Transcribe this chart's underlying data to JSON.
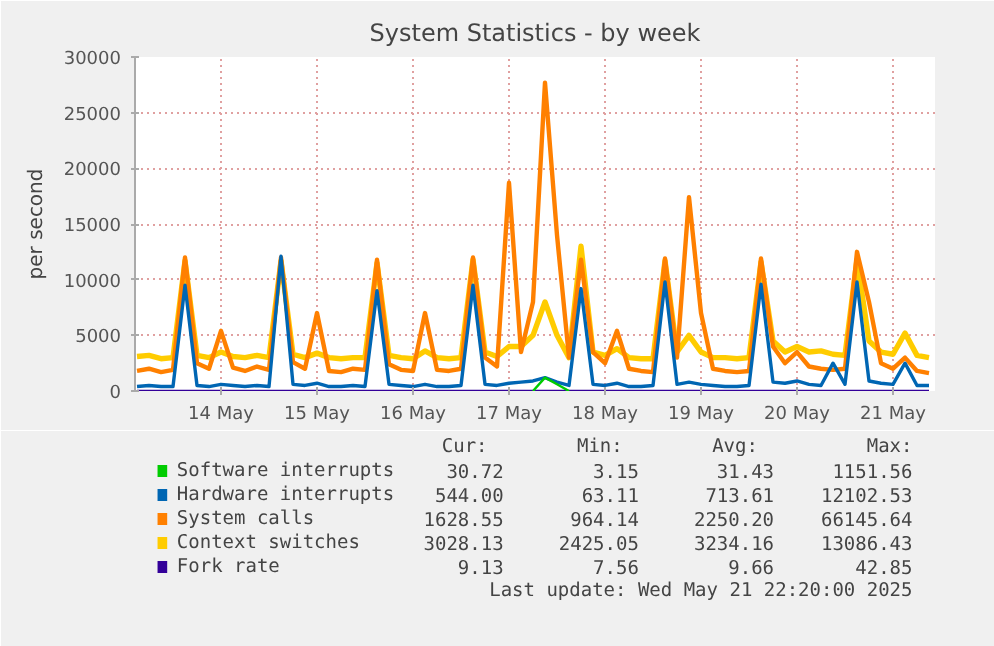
{
  "chart_data": {
    "type": "line",
    "title": "System Statistics - by week",
    "ylabel": "per second",
    "x": [
      "2025-05-13T15:00",
      "2025-05-13T18:00",
      "2025-05-13T21:00",
      "2025-05-14T00:00",
      "2025-05-14T03:00",
      "2025-05-14T06:00",
      "2025-05-14T09:00",
      "2025-05-14T12:00",
      "2025-05-14T15:00",
      "2025-05-14T18:00",
      "2025-05-14T21:00",
      "2025-05-15T00:00",
      "2025-05-15T03:00",
      "2025-05-15T06:00",
      "2025-05-15T09:00",
      "2025-05-15T12:00",
      "2025-05-15T15:00",
      "2025-05-15T18:00",
      "2025-05-15T21:00",
      "2025-05-16T00:00",
      "2025-05-16T03:00",
      "2025-05-16T06:00",
      "2025-05-16T09:00",
      "2025-05-16T12:00",
      "2025-05-16T15:00",
      "2025-05-16T18:00",
      "2025-05-16T21:00",
      "2025-05-17T00:00",
      "2025-05-17T03:00",
      "2025-05-17T06:00",
      "2025-05-17T09:00",
      "2025-05-17T12:00",
      "2025-05-17T15:00",
      "2025-05-17T18:00",
      "2025-05-17T21:00",
      "2025-05-18T00:00",
      "2025-05-18T03:00",
      "2025-05-18T06:00",
      "2025-05-18T09:00",
      "2025-05-18T12:00",
      "2025-05-18T15:00",
      "2025-05-18T18:00",
      "2025-05-18T21:00",
      "2025-05-19T00:00",
      "2025-05-19T03:00",
      "2025-05-19T06:00",
      "2025-05-19T09:00",
      "2025-05-19T12:00",
      "2025-05-19T15:00",
      "2025-05-19T18:00",
      "2025-05-19T21:00",
      "2025-05-20T00:00",
      "2025-05-20T03:00",
      "2025-05-20T06:00",
      "2025-05-20T09:00",
      "2025-05-20T12:00",
      "2025-05-20T15:00",
      "2025-05-20T18:00",
      "2025-05-20T21:00",
      "2025-05-21T00:00",
      "2025-05-21T03:00",
      "2025-05-21T06:00",
      "2025-05-21T09:00",
      "2025-05-21T12:00",
      "2025-05-21T15:00",
      "2025-05-21T18:00",
      "2025-05-21T21:00"
    ],
    "series": [
      {
        "name": "Software interrupts",
        "color": "#00cc00",
        "values": [
          null,
          null,
          null,
          null,
          null,
          null,
          null,
          null,
          null,
          null,
          null,
          null,
          null,
          null,
          null,
          null,
          null,
          null,
          null,
          null,
          null,
          null,
          null,
          null,
          null,
          null,
          null,
          null,
          null,
          null,
          null,
          null,
          null,
          0,
          1200,
          600,
          0,
          null,
          null,
          null,
          null,
          null,
          null,
          null,
          null,
          null,
          null,
          null,
          null,
          null,
          null,
          null,
          null,
          null,
          null,
          null,
          null,
          null,
          null,
          null,
          null,
          null,
          null,
          null,
          null,
          null,
          null
        ]
      },
      {
        "name": "Hardware interrupts",
        "color": "#0066b3",
        "values": [
          400,
          500,
          400,
          400,
          9500,
          500,
          400,
          600,
          500,
          400,
          500,
          400,
          12100,
          600,
          500,
          700,
          400,
          400,
          500,
          400,
          9000,
          600,
          500,
          400,
          600,
          400,
          400,
          500,
          9500,
          600,
          500,
          700,
          800,
          900,
          1200,
          800,
          500,
          9200,
          600,
          500,
          700,
          400,
          400,
          500,
          9800,
          600,
          800,
          600,
          500,
          400,
          400,
          500,
          9600,
          800,
          700,
          900,
          600,
          500,
          2500,
          600,
          9800,
          900,
          700,
          600,
          2500,
          500,
          500
        ]
      },
      {
        "name": "System calls",
        "color": "#ff8000",
        "values": [
          1800,
          2000,
          1700,
          1900,
          12000,
          2500,
          2000,
          5400,
          2100,
          1800,
          2200,
          1900,
          12000,
          2600,
          2000,
          7000,
          1800,
          1700,
          2000,
          1900,
          11800,
          2400,
          1900,
          1800,
          7000,
          1900,
          1800,
          2000,
          12000,
          3000,
          2200,
          18700,
          3500,
          8000,
          27700,
          14000,
          3000,
          11800,
          3500,
          2500,
          5400,
          2000,
          1800,
          1700,
          11900,
          3000,
          17400,
          7000,
          2000,
          1800,
          1700,
          1800,
          11900,
          4000,
          2500,
          3500,
          2200,
          2000,
          1900,
          2000,
          12500,
          8000,
          2500,
          2000,
          3000,
          1800,
          1600
        ]
      },
      {
        "name": "Context switches",
        "color": "#ffcc00",
        "values": [
          3100,
          3200,
          2900,
          3000,
          11700,
          3200,
          3000,
          3500,
          3100,
          3000,
          3200,
          3000,
          11700,
          3300,
          3000,
          3400,
          3000,
          2900,
          3000,
          3000,
          11500,
          3200,
          3000,
          2900,
          3600,
          3000,
          2900,
          3000,
          11800,
          3500,
          3100,
          4000,
          4000,
          5000,
          8000,
          5000,
          3000,
          13000,
          3500,
          3200,
          3800,
          3000,
          2900,
          2900,
          11700,
          3500,
          5000,
          3500,
          3000,
          3000,
          2900,
          3000,
          11600,
          4500,
          3500,
          4000,
          3500,
          3600,
          3300,
          3200,
          11800,
          4500,
          3500,
          3300,
          5200,
          3200,
          3000
        ]
      },
      {
        "name": "Fork rate",
        "color": "#330099",
        "values": [
          0,
          0,
          0,
          0,
          0,
          0,
          0,
          0,
          0,
          0,
          0,
          0,
          0,
          0,
          0,
          0,
          0,
          0,
          0,
          0,
          0,
          0,
          0,
          0,
          0,
          0,
          0,
          0,
          0,
          0,
          0,
          0,
          0,
          0,
          0,
          0,
          0,
          0,
          0,
          0,
          0,
          0,
          0,
          0,
          0,
          0,
          0,
          0,
          0,
          0,
          0,
          0,
          0,
          0,
          0,
          0,
          0,
          0,
          0,
          0,
          0,
          0,
          0,
          0,
          0,
          0,
          0
        ]
      }
    ],
    "xlim": [
      "2025-05-13T14:30",
      "2025-05-21T22:30"
    ],
    "xticks": [
      {
        "value": "2025-05-14T12:00",
        "label": "14 May"
      },
      {
        "value": "2025-05-15T12:00",
        "label": "15 May"
      },
      {
        "value": "2025-05-16T12:00",
        "label": "16 May"
      },
      {
        "value": "2025-05-17T12:00",
        "label": "17 May"
      },
      {
        "value": "2025-05-18T12:00",
        "label": "18 May"
      },
      {
        "value": "2025-05-19T12:00",
        "label": "19 May"
      },
      {
        "value": "2025-05-20T12:00",
        "label": "20 May"
      },
      {
        "value": "2025-05-21T12:00",
        "label": "21 May"
      }
    ],
    "ylim": [
      0,
      30000
    ],
    "yticks": [
      0,
      5000,
      10000,
      15000,
      20000,
      25000,
      30000
    ],
    "grid": true,
    "legend": "bottom",
    "marker": "none",
    "line_style": "solid",
    "annotations": [
      "Cur:",
      "Min:",
      "Avg:",
      "Max:",
      "30.72",
      "3.15",
      "31.43",
      "1151.56",
      "544.00",
      "63.11",
      "713.61",
      "12102.53",
      "1628.55",
      "964.14",
      "2250.20",
      "66145.64",
      "3028.13",
      "2425.05",
      "3234.16",
      "13086.43",
      "9.13",
      "7.56",
      "9.66",
      "42.85",
      "Last update: Wed May 21 22:20:00 2025"
    ]
  }
}
